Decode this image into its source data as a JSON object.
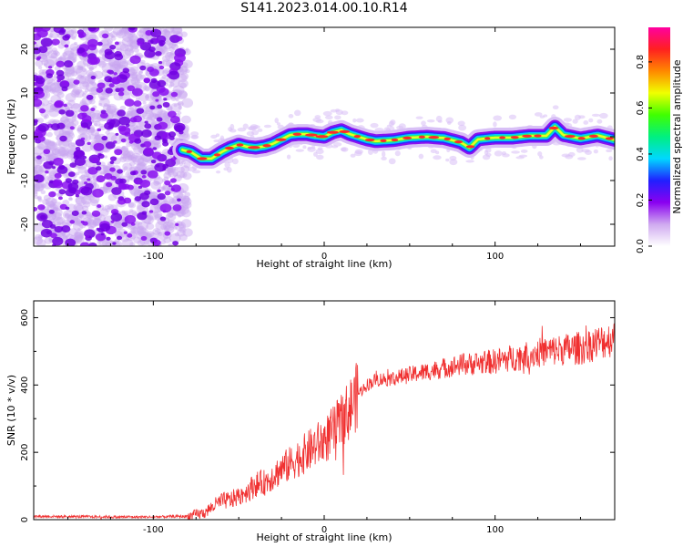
{
  "title": "S141.2023.014.00.10.R14",
  "colors": {
    "snr_line": "#f03030",
    "axis": "#000000"
  },
  "chart_data": [
    {
      "type": "heatmap",
      "xlabel": "Height of straight line (km)",
      "ylabel": "Frequency (Hz)",
      "xlim": [
        -170,
        170
      ],
      "ylim": [
        -25,
        25
      ],
      "xticks": [
        -100,
        0,
        100
      ],
      "xtick_labels": [
        "-100",
        "0",
        "100"
      ],
      "yticks": [
        -20,
        -10,
        0,
        10,
        20
      ],
      "ytick_labels": [
        "-20",
        "-10",
        "0",
        "10",
        "20"
      ],
      "noise_region_end_x": -83,
      "ridge": {
        "x": [
          -83,
          -78,
          -72,
          -66,
          -60,
          -55,
          -50,
          -45,
          -40,
          -35,
          -30,
          -25,
          -20,
          -15,
          -10,
          -5,
          0,
          5,
          10,
          15,
          20,
          25,
          30,
          40,
          50,
          60,
          70,
          80,
          85,
          90,
          100,
          110,
          120,
          130,
          135,
          140,
          150,
          160,
          170
        ],
        "freq": [
          -3,
          -3.5,
          -5,
          -5,
          -3.5,
          -2.5,
          -1.8,
          -2.3,
          -2.5,
          -2.2,
          -1.6,
          -0.6,
          0.4,
          0.6,
          0.6,
          0.2,
          0,
          1,
          1.5,
          0.6,
          0,
          -0.6,
          -1,
          -0.8,
          -0.2,
          0,
          -0.3,
          -1.3,
          -2.5,
          -0.6,
          -0.2,
          -0.2,
          0.2,
          0.2,
          2.3,
          0.4,
          -0.4,
          0.3,
          -0.7
        ]
      },
      "colorbar": {
        "label": "Normalized spectral amplitude",
        "ticks": [
          0.0,
          0.2,
          0.4,
          0.6,
          0.8
        ],
        "tick_labels": [
          "0.0",
          "0.2",
          "0.4",
          "0.6",
          "0.8"
        ],
        "range": [
          0,
          0.95
        ],
        "colormap": [
          "#ffffff",
          "#cfa9f0",
          "#8a00f0",
          "#2020ff",
          "#00d8ff",
          "#00f080",
          "#40ff00",
          "#f0ff00",
          "#ff8800",
          "#ff2020",
          "#ff00a0"
        ]
      }
    },
    {
      "type": "line",
      "xlabel": "Height of straight line (km)",
      "ylabel": "SNR (10 * v/v)",
      "xlim": [
        -170,
        170
      ],
      "ylim": [
        0,
        650
      ],
      "xticks": [
        -100,
        0,
        100
      ],
      "xtick_labels": [
        "-100",
        "0",
        "100"
      ],
      "yticks": [
        0,
        200,
        400,
        600
      ],
      "ytick_labels": [
        "0",
        "200",
        "400",
        "600"
      ],
      "series": [
        {
          "x": [
            -170,
            -150,
            -120,
            -100,
            -80,
            -70,
            -65,
            -60,
            -55,
            -50,
            -45,
            -40,
            -35,
            -30,
            -25,
            -20,
            -15,
            -10,
            -5,
            0,
            5,
            10,
            15,
            20,
            25,
            30,
            40,
            50,
            60,
            70,
            80,
            90,
            100,
            110,
            120,
            130,
            140,
            150,
            160,
            170
          ],
          "values": [
            10,
            9,
            8,
            8,
            10,
            20,
            40,
            55,
            58,
            70,
            85,
            105,
            110,
            130,
            150,
            165,
            185,
            200,
            220,
            235,
            260,
            290,
            330,
            375,
            400,
            415,
            420,
            430,
            440,
            450,
            460,
            465,
            470,
            480,
            490,
            500,
            505,
            510,
            525,
            540
          ]
        }
      ]
    }
  ]
}
